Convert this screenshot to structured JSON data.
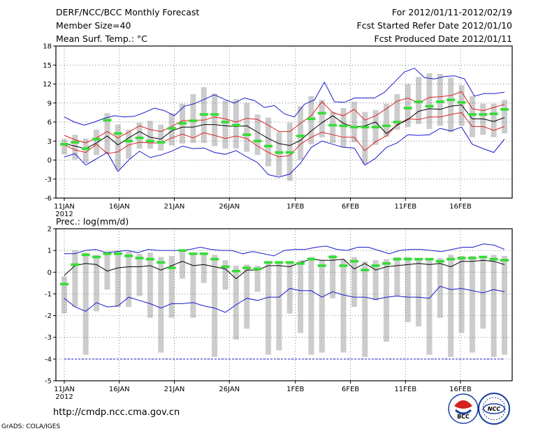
{
  "header": {
    "title": "DERF/NCC/BCC Monthly Forecast",
    "member_size": "Member Size=40",
    "variable_temp": "Mean Surf. Temp.: °C",
    "period": "For 2012/01/11-2012/02/19",
    "started": "Fcst Started Refer Date 2012/01/10",
    "produced": "Fcst Produced Date 2012/01/11"
  },
  "footer": {
    "url": "http://cmdp.ncc.cma.gov.cn",
    "credit": "GrADS: COLA/IGES",
    "logo_bcc": "BCC",
    "logo_ncc": "NCC"
  },
  "colors": {
    "envelope": "#1a1acc",
    "spread": "#dd2222",
    "mean": "#000000",
    "median": "#33dd33",
    "box": "#cccccc",
    "grid": "#555555"
  },
  "chart_data": [
    {
      "type": "line",
      "title": "Mean Surf. Temp.: °C",
      "ylim": [
        -6,
        18
      ],
      "yticks": [
        -6,
        -3,
        0,
        3,
        6,
        9,
        12,
        15,
        18
      ],
      "x_tick_labels": [
        "11JAN",
        "16JAN",
        "21JAN",
        "26JAN",
        "1FEB",
        "6FEB",
        "11FEB",
        "16FEB"
      ],
      "x_tick_days": [
        0,
        5,
        10,
        15,
        21,
        26,
        31,
        36
      ],
      "x_year_label": "2012",
      "days": 40,
      "series": [
        {
          "name": "max",
          "values": [
            6.8,
            6,
            5.5,
            6,
            6.6,
            7,
            6.8,
            6.9,
            7.5,
            8.2,
            7.8,
            7,
            8.5,
            8.9,
            9.6,
            10.3,
            9.6,
            9,
            9.8,
            9.4,
            8.3,
            8.6,
            7.3,
            6.8,
            8.8,
            9.5,
            12.3,
            9.2,
            9.1,
            9.8,
            9.8,
            9.8,
            10.7,
            12.3,
            13.9,
            14.5,
            13,
            12.8,
            13.2,
            13.3,
            12.8,
            10.1,
            10.5,
            10.5,
            10.7
          ]
        },
        {
          "name": "spread_upper",
          "values": [
            3.9,
            3.2,
            2.7,
            3.5,
            4.5,
            3.5,
            4.4,
            5.4,
            4.8,
            4.5,
            5.3,
            6.2,
            6.3,
            6.3,
            6.8,
            6.5,
            6,
            6.6,
            6.4,
            5.5,
            4.5,
            4.5,
            5.8,
            7,
            9.2,
            7.5,
            7,
            8,
            6.3,
            7,
            8.1,
            9.3,
            9.8,
            9,
            9.9,
            10,
            10.2,
            10.8,
            8.1,
            7.8,
            8.3,
            8.8
          ]
        },
        {
          "name": "mean",
          "values": [
            2.6,
            2.2,
            1.8,
            2.7,
            3.8,
            2.4,
            3.5,
            4.5,
            3.6,
            3.3,
            4.6,
            5.2,
            5.2,
            5.6,
            5.6,
            5.4,
            5.3,
            5.4,
            4.4,
            3.4,
            2.6,
            2.3,
            3.1,
            4.6,
            5.9,
            7,
            5.8,
            5.2,
            5.4,
            6,
            4.2,
            5.5,
            6.4,
            7.7,
            8.1,
            8,
            8.5,
            8.7,
            6.5,
            6.5,
            6.1,
            6.7
          ]
        },
        {
          "name": "spread_lower",
          "values": [
            2.4,
            1.6,
            1.2,
            2.5,
            1,
            1.3,
            2.4,
            2.8,
            2.7,
            2.7,
            3.5,
            4.1,
            3.5,
            4.3,
            3.9,
            3.4,
            3.8,
            3.4,
            2.2,
            1.2,
            0.5,
            0.7,
            2.5,
            3.6,
            4.4,
            4,
            3.6,
            3.6,
            1.5,
            2.9,
            3.8,
            5.6,
            6.5,
            6.4,
            6.8,
            6.8,
            7.2,
            7.5,
            5.3,
            5.3,
            4.7,
            5.3
          ]
        },
        {
          "name": "min",
          "values": [
            0.5,
            1,
            -0.8,
            0.2,
            1.2,
            -1.8,
            0,
            1.4,
            0.4,
            0.8,
            1.4,
            2.2,
            1.8,
            1.9,
            1.2,
            0.9,
            1.5,
            0.5,
            -0.4,
            -2.3,
            -2.7,
            -2.2,
            -0.5,
            2,
            3,
            2.5,
            2,
            1.9,
            -0.8,
            0.3,
            2,
            2.7,
            4,
            3.9,
            4,
            5,
            4.6,
            5.2,
            2.5,
            1.8,
            1.2,
            3.3
          ]
        },
        {
          "name": "median",
          "values": [
            2.5,
            2.8,
            1.8,
            3.3,
            6.3,
            4.2,
            3,
            3.5,
            3,
            2.8,
            5,
            5.8,
            6.2,
            7.2,
            7.2,
            6,
            5.5,
            4,
            3,
            2.2,
            1.2,
            1.2,
            3.8,
            6.5,
            7.4,
            5.5,
            5.4,
            5.2,
            5.2,
            5.2,
            5.4,
            6,
            8.2,
            9.2,
            8.5,
            9.2,
            9.5,
            9.1,
            7.2,
            7.2,
            7.3,
            8
          ]
        },
        {
          "name": "box_top",
          "values": [
            3.3,
            4,
            3.4,
            4.8,
            7.4,
            5.6,
            4.8,
            5.9,
            6.2,
            5.6,
            7.4,
            8.9,
            10.4,
            11.5,
            10.5,
            9.4,
            9.6,
            9,
            7.2,
            6.7,
            4.4,
            5.9,
            8.5,
            10.1,
            9.5,
            7.6,
            8.2,
            9.2,
            7.6,
            7.9,
            8.9,
            10.4,
            12,
            13.1,
            13.7,
            13.6,
            13,
            11.8,
            10.1,
            8.9,
            8.9,
            9.5
          ]
        },
        {
          "name": "box_bottom",
          "values": [
            0.9,
            0.1,
            -0.5,
            0.8,
            1.1,
            -1.5,
            0.2,
            1.8,
            1.8,
            1.5,
            2.3,
            2.6,
            2.7,
            2.7,
            2.2,
            1.8,
            1.8,
            1.3,
            0.8,
            -1,
            -2.5,
            -3.3,
            0,
            2.5,
            3.6,
            2.7,
            2,
            2.8,
            -0.6,
            2.4,
            3.7,
            4.8,
            5.2,
            5.7,
            4.9,
            5.4,
            4.4,
            5.4,
            3.6,
            4,
            3.6,
            4.2
          ]
        }
      ]
    },
    {
      "type": "line",
      "title": "Prec.: log(mm/d)",
      "ylim": [
        -5,
        2
      ],
      "yticks": [
        -5,
        -4,
        -3,
        -2,
        -1,
        0,
        1,
        2
      ],
      "x_tick_labels": [
        "11JAN",
        "16JAN",
        "21JAN",
        "26JAN",
        "1FEB",
        "6FEB",
        "11FEB",
        "16FEB"
      ],
      "x_tick_days": [
        0,
        5,
        10,
        15,
        21,
        26,
        31,
        36
      ],
      "x_year_label": "2012",
      "days": 40,
      "series": [
        {
          "name": "max",
          "values": [
            0.85,
            0.85,
            1,
            1.05,
            0.9,
            0.95,
            1,
            0.9,
            1.05,
            1,
            1,
            1,
            1.05,
            1.15,
            1.05,
            1,
            1,
            0.85,
            0.95,
            0.85,
            0.75,
            1,
            1.05,
            1.05,
            1.15,
            1.2,
            1.05,
            1,
            1.15,
            1.15,
            1,
            0.85,
            1,
            1.05,
            1.05,
            1,
            0.95,
            1.05,
            1.15,
            1.15,
            1.3,
            1.25,
            1.05
          ]
        },
        {
          "name": "mean",
          "values": [
            -0.15,
            0.3,
            0.4,
            0.35,
            0.05,
            0.2,
            0.25,
            0.25,
            0.3,
            0.1,
            0.3,
            0.5,
            0.3,
            0.35,
            0.25,
            0.15,
            -0.3,
            0.1,
            0.1,
            0.3,
            0.3,
            0.25,
            0.45,
            0.6,
            0.55,
            0.55,
            0.6,
            0.15,
            0.4,
            0.1,
            0.25,
            0.3,
            0.35,
            0.4,
            0.35,
            0.4,
            0.25,
            0.5,
            0.5,
            0.55,
            0.5,
            0.35
          ]
        },
        {
          "name": "min",
          "values": [
            -1.2,
            -1.6,
            -1.8,
            -1.4,
            -1.6,
            -1.55,
            -1.15,
            -1.3,
            -1.45,
            -1.65,
            -1.45,
            -1.45,
            -1.4,
            -1.55,
            -1.65,
            -1.85,
            -1.5,
            -1.2,
            -1.3,
            -1.15,
            -1.15,
            -0.75,
            -0.85,
            -0.85,
            -1.15,
            -0.9,
            -1.05,
            -1.15,
            -1.15,
            -1.25,
            -1.15,
            -1.1,
            -1.15,
            -1.15,
            -1.2,
            -0.65,
            -0.8,
            -0.75,
            -0.85,
            -0.95,
            -0.8,
            -0.9
          ]
        },
        {
          "name": "median",
          "values": [
            -0.55,
            0.35,
            0.8,
            0.7,
            0.85,
            0.85,
            0.75,
            0.65,
            0.6,
            0.45,
            0.2,
            1,
            0.85,
            0.85,
            0.6,
            0.25,
            0.05,
            0.2,
            0.15,
            0.45,
            0.45,
            0.45,
            0.4,
            0.6,
            0.3,
            0.7,
            0.3,
            0.5,
            0.1,
            0.3,
            0.4,
            0.6,
            0.6,
            0.6,
            0.6,
            0.5,
            0.6,
            0.65,
            0.65,
            0.7,
            0.6,
            0.55
          ]
        },
        {
          "name": "box_top",
          "values": [
            -0.2,
            1,
            0.9,
            0.8,
            0.95,
            1,
            0.95,
            0.85,
            0.9,
            0.7,
            0.75,
            1.05,
            0.9,
            0.9,
            0.8,
            0.55,
            0.3,
            0.35,
            0.3,
            0.5,
            0.5,
            0.5,
            0.55,
            0.7,
            0.55,
            0.8,
            0.6,
            0.7,
            0.5,
            0.55,
            0.6,
            0.7,
            0.7,
            0.65,
            0.65,
            0.65,
            0.8,
            0.75,
            0.75,
            0.75,
            0.8,
            0.75
          ]
        },
        {
          "name": "box_bottom",
          "values": [
            -1.9,
            -1.6,
            -3.8,
            -1.8,
            -0.8,
            -1.6,
            -1.6,
            -1.1,
            -2.1,
            -3.7,
            -2.1,
            -0.3,
            -2.1,
            -0.5,
            -3.9,
            -0.8,
            -3.1,
            -2.6,
            -0.9,
            -3.8,
            -3.6,
            -1.9,
            -2.8,
            -3.8,
            -3.7,
            -1.2,
            -3.7,
            -1.6,
            -3.9,
            -1.3,
            -3.2,
            -1.1,
            -2.3,
            -2.5,
            -3.8,
            -2.1,
            -3.9,
            -2.8,
            -3.7,
            -2.6,
            -3.9,
            -3.8
          ]
        },
        {
          "name": "floor",
          "values": [
            -4,
            -4
          ]
        }
      ]
    }
  ]
}
